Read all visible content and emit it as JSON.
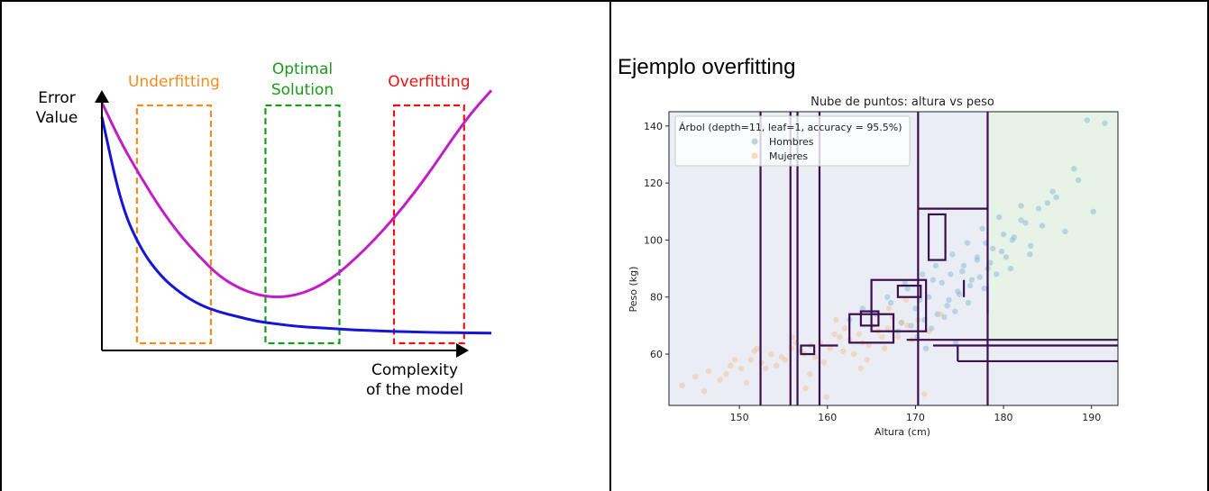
{
  "left_chart": {
    "ylabel_lines": [
      "Error",
      "Value"
    ],
    "xlabel_lines": [
      "Complexity",
      "of the model"
    ],
    "regions": [
      {
        "label_lines": [
          "Underfitting"
        ],
        "color": "#f28c1f"
      },
      {
        "label_lines": [
          "Optimal",
          "Solution"
        ],
        "color": "#1a9a1a"
      },
      {
        "label_lines": [
          "Overfitting"
        ],
        "color": "#ee1111"
      }
    ],
    "curve_colors": {
      "training": "#1515d8",
      "validation": "#c21ec8"
    }
  },
  "right_panel": {
    "heading": "Ejemplo overfitting"
  },
  "chart_data": [
    {
      "type": "line",
      "title": "",
      "xlabel": "Complexity of the model",
      "ylabel": "Error Value",
      "x": [
        0.0,
        0.05,
        0.1,
        0.15,
        0.2,
        0.25,
        0.3,
        0.35,
        0.4,
        0.45,
        0.5,
        0.55,
        0.6,
        0.65,
        0.7,
        0.75,
        0.8,
        0.85,
        0.9,
        0.95,
        1.0
      ],
      "series": [
        {
          "values": [
            0.97,
            0.6,
            0.42,
            0.31,
            0.24,
            0.19,
            0.16,
            0.14,
            0.12,
            0.11,
            0.1,
            0.095,
            0.09,
            0.085,
            0.082,
            0.079,
            0.077,
            0.075,
            0.074,
            0.073,
            0.072
          ]
        },
        {
          "values": [
            1.03,
            0.86,
            0.72,
            0.59,
            0.48,
            0.39,
            0.31,
            0.26,
            0.23,
            0.22,
            0.23,
            0.26,
            0.31,
            0.38,
            0.46,
            0.55,
            0.65,
            0.76,
            0.88,
            0.99,
            1.08
          ]
        }
      ],
      "regions": [
        {
          "label": "Underfitting",
          "x_range": [
            0.09,
            0.28
          ]
        },
        {
          "label": "Optimal Solution",
          "x_range": [
            0.42,
            0.61
          ]
        },
        {
          "label": "Overfitting",
          "x_range": [
            0.75,
            0.93
          ]
        }
      ],
      "ylim": [
        0,
        1.1
      ],
      "grid": false,
      "legend": "none"
    },
    {
      "type": "scatter",
      "title": "Nube de puntos: altura vs peso",
      "xlabel": "Altura (cm)",
      "ylabel": "Peso (kg)",
      "xlim": [
        142,
        193
      ],
      "ylim": [
        42,
        145
      ],
      "xticks": [
        150,
        160,
        170,
        180,
        190
      ],
      "yticks": [
        60,
        80,
        100,
        120,
        140
      ],
      "legend_title": "Árbol (depth=11, leaf=1, accuracy = 95.5%)",
      "legend_position": "upper-left",
      "grid": false,
      "series": [
        {
          "name": "Hombres",
          "color": "#7fb2d5",
          "x": [
            165.5,
            167.2,
            168.4,
            169.1,
            170.0,
            170.8,
            171.5,
            172.3,
            173.0,
            173.6,
            174.2,
            174.8,
            175.3,
            175.9,
            176.4,
            177.0,
            177.6,
            178.2,
            178.8,
            179.5,
            180.3,
            181.2,
            182.0,
            183.1,
            184.4,
            185.6,
            187.0,
            188.5,
            190.2,
            191.5,
            168.0,
            169.5,
            171.0,
            172.5,
            173.8,
            175.0,
            176.2,
            177.3,
            178.5,
            179.8,
            181.0,
            182.5,
            184.0,
            186.0,
            170.2,
            171.8,
            173.3,
            174.5,
            176.0,
            177.8,
            179.2,
            180.8,
            183.0,
            166.8,
            168.8,
            170.5,
            172.0,
            174.0,
            175.5,
            177.0,
            178.0,
            180.0,
            182.0,
            185.0,
            188.0,
            162.5,
            164.0,
            189.5,
            171.2,
            174.6
          ],
          "y": [
            74,
            78,
            71,
            83,
            76,
            88,
            80,
            91,
            85,
            77,
            95,
            82,
            89,
            99,
            86,
            93,
            104,
            90,
            97,
            108,
            94,
            101,
            112,
            98,
            105,
            117,
            103,
            121,
            110,
            141,
            68,
            70,
            72,
            74,
            79,
            81,
            84,
            87,
            92,
            96,
            100,
            106,
            111,
            115,
            66,
            69,
            73,
            75,
            78,
            83,
            88,
            90,
            95,
            80,
            85,
            79,
            86,
            88,
            91,
            94,
            99,
            102,
            107,
            113,
            125,
            72,
            76,
            142,
            62,
            64
          ]
        },
        {
          "name": "Mujeres",
          "color": "#f7b98b",
          "x": [
            143.5,
            145.0,
            146.5,
            147.8,
            149.0,
            150.2,
            151.3,
            152.5,
            153.6,
            154.8,
            155.9,
            157.0,
            158.1,
            159.2,
            160.3,
            161.4,
            162.5,
            163.6,
            164.7,
            165.8,
            166.9,
            168.0,
            169.1,
            170.3,
            171.5,
            172.8,
            148.5,
            150.8,
            153.0,
            155.2,
            157.4,
            159.6,
            161.8,
            164.0,
            166.2,
            168.4,
            152.0,
            154.2,
            156.4,
            158.6,
            160.8,
            163.0,
            165.2,
            167.4,
            169.6,
            149.5,
            151.7,
            156.0,
            158.0,
            162.0,
            164.5,
            167.0,
            157.5,
            161.0,
            163.8,
            146.0,
            159.9,
            166.5,
            168.9,
            171.0
          ],
          "y": [
            49,
            52,
            54,
            51,
            56,
            55,
            58,
            57,
            60,
            59,
            62,
            61,
            63,
            64,
            62,
            66,
            65,
            67,
            63,
            68,
            69,
            66,
            70,
            72,
            68,
            74,
            53,
            50,
            55,
            58,
            60,
            57,
            61,
            64,
            66,
            71,
            62,
            56,
            64,
            59,
            67,
            60,
            70,
            73,
            65,
            58,
            61,
            66,
            53,
            69,
            58,
            76,
            48,
            72,
            55,
            47,
            45,
            62,
            79,
            46
          ]
        }
      ]
    }
  ]
}
